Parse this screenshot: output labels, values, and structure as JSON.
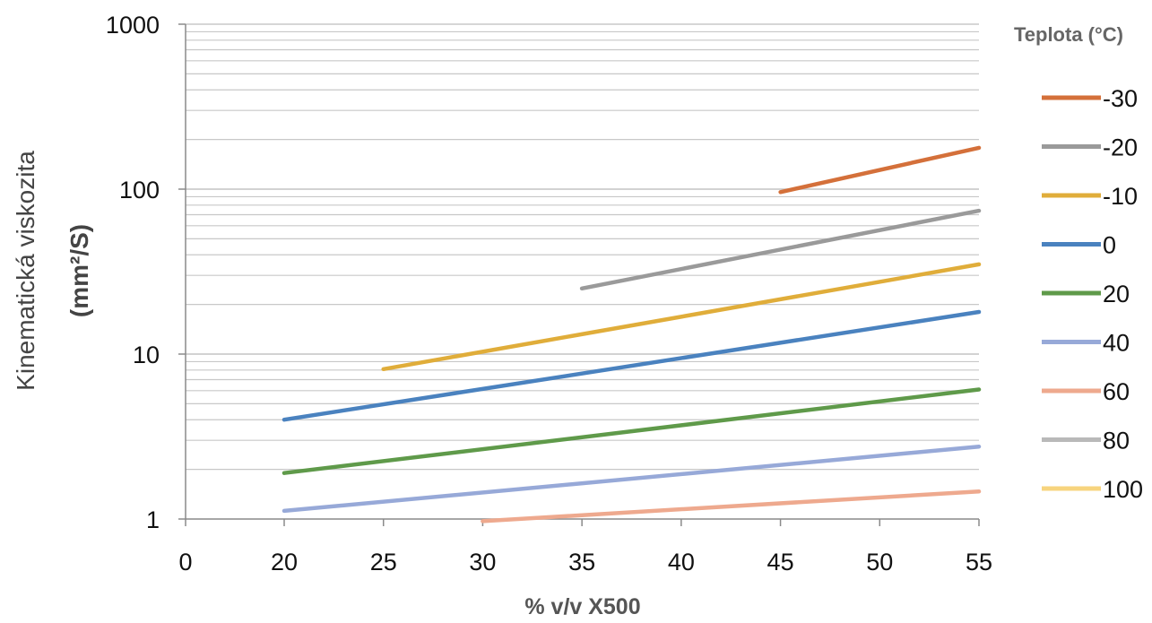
{
  "chart_data": {
    "type": "line",
    "ylabel_line1": "Kinematická viskozita",
    "ylabel_line2": "(mm²/S)",
    "xlabel": "% v/v X500",
    "legend_title": "Teplota (°C)",
    "legend_position": "right",
    "y_scale": "log",
    "ylim": [
      1,
      1000
    ],
    "y_ticks": [
      "1",
      "10",
      "100",
      "1000"
    ],
    "x_ticks": [
      "0",
      "20",
      "25",
      "30",
      "35",
      "40",
      "45",
      "50",
      "55"
    ],
    "x_tick_values": [
      0,
      20,
      25,
      30,
      35,
      40,
      45,
      50,
      55
    ],
    "grid": true,
    "series": [
      {
        "name": "-30",
        "color": "#d4703a",
        "x": [
          45,
          55
        ],
        "y": [
          96,
          178
        ]
      },
      {
        "name": "-20",
        "color": "#9a9a9a",
        "x": [
          35,
          55
        ],
        "y": [
          25,
          74
        ]
      },
      {
        "name": "-10",
        "color": "#e0ad3a",
        "x": [
          25,
          55
        ],
        "y": [
          8.1,
          35
        ]
      },
      {
        "name": "0",
        "color": "#4a82bf",
        "x": [
          20,
          55
        ],
        "y": [
          4.0,
          18
        ]
      },
      {
        "name": "20",
        "color": "#5f9a4a",
        "x": [
          20,
          55
        ],
        "y": [
          1.9,
          6.1
        ]
      },
      {
        "name": "40",
        "color": "#97a9d8",
        "x": [
          20,
          55
        ],
        "y": [
          1.12,
          2.75
        ]
      },
      {
        "name": "60",
        "color": "#eea98e",
        "x": [
          30,
          55
        ],
        "y": [
          0.97,
          1.47
        ]
      },
      {
        "name": "80",
        "color": "#b9b9b9",
        "x": [],
        "y": []
      },
      {
        "name": "100",
        "color": "#f7d47e",
        "x": [],
        "y": []
      }
    ]
  }
}
